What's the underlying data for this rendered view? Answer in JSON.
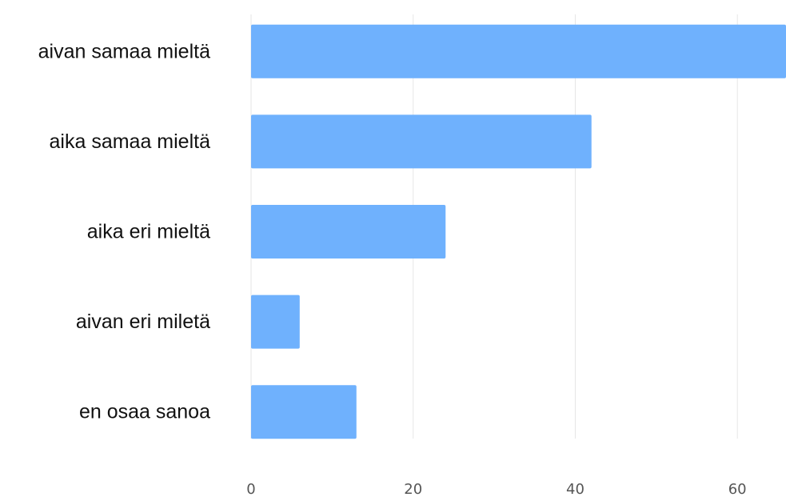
{
  "chart_data": {
    "type": "bar",
    "orientation": "horizontal",
    "categories": [
      "aivan samaa mieltä",
      "aika samaa mieltä",
      "aika eri mieltä",
      "aivan eri miletä",
      "en osaa sanoa"
    ],
    "values": [
      66,
      42,
      24,
      6,
      13
    ],
    "x_ticks": [
      0,
      20,
      40,
      60
    ],
    "xlim": [
      0,
      66
    ],
    "title": "",
    "xlabel": "",
    "ylabel": "",
    "bar_color": "#6fb1fd",
    "grid": true,
    "legend": "none"
  }
}
